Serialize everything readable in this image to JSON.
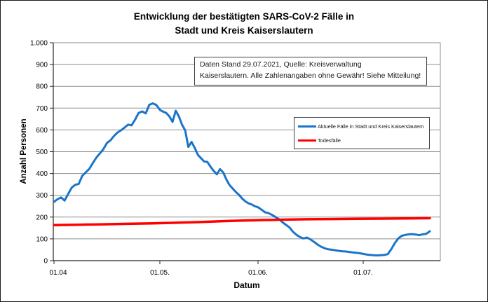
{
  "title": {
    "line1": "Entwicklung der bestätigten SARS-CoV-2 Fälle in",
    "line2": "Stadt und Kreis Kaiserslautern"
  },
  "annotation": {
    "line1": "Daten Stand 29.07.2021, Quelle: Kreisverwaltung",
    "line2": "Kaiserslautern. Alle Zahlenangaben ohne Gewähr! Siehe Mitteilung!"
  },
  "chart_data": {
    "type": "line",
    "title": "Entwicklung der bestätigten SARS-CoV-2 Fälle in Stadt und Kreis Kaiserslautern",
    "xlabel": "Datum",
    "ylabel": "Anzahl Personen",
    "ylim": [
      0,
      1000
    ],
    "grid": true,
    "legend_position": "inside-right",
    "y_axis": {
      "max": 1000,
      "ticks": [
        {
          "v": 0,
          "label": "0"
        },
        {
          "v": 100,
          "label": "100"
        },
        {
          "v": 200,
          "label": "200"
        },
        {
          "v": 300,
          "label": "300"
        },
        {
          "v": 400,
          "label": "400"
        },
        {
          "v": 500,
          "label": "500"
        },
        {
          "v": 600,
          "label": "600"
        },
        {
          "v": 700,
          "label": "700"
        },
        {
          "v": 800,
          "label": "800"
        },
        {
          "v": 900,
          "label": "900"
        },
        {
          "v": 1000,
          "label": "1.000"
        }
      ]
    },
    "x_axis": {
      "ticks": [
        {
          "date": "01.04",
          "label": "01.04"
        },
        {
          "date": "01.05",
          "label": "01.05."
        },
        {
          "date": "01.06",
          "label": "01.06."
        },
        {
          "date": "01.07",
          "label": "01.07."
        }
      ]
    },
    "series": [
      {
        "id": "aktuelle-faelle",
        "name": "Aktuelle Fälle in Stadt und Kreis Kaiserslautern",
        "color": "#1a75c9",
        "width": 3,
        "points": [
          [
            "01.04",
            270
          ],
          [
            "02.04",
            282
          ],
          [
            "03.04",
            290
          ],
          [
            "04.04",
            276
          ],
          [
            "05.04",
            305
          ],
          [
            "06.04",
            335
          ],
          [
            "07.04",
            348
          ],
          [
            "08.04",
            352
          ],
          [
            "09.04",
            389
          ],
          [
            "10.04",
            405
          ],
          [
            "11.04",
            421
          ],
          [
            "12.04",
            448
          ],
          [
            "13.04",
            473
          ],
          [
            "14.04",
            492
          ],
          [
            "15.04",
            512
          ],
          [
            "16.04",
            540
          ],
          [
            "17.04",
            552
          ],
          [
            "18.04",
            572
          ],
          [
            "19.04",
            588
          ],
          [
            "20.04",
            598
          ],
          [
            "21.04",
            611
          ],
          [
            "22.04",
            624
          ],
          [
            "23.04",
            621
          ],
          [
            "24.04",
            648
          ],
          [
            "25.04",
            678
          ],
          [
            "26.04",
            685
          ],
          [
            "27.04",
            676
          ],
          [
            "28.04",
            715
          ],
          [
            "29.04",
            722
          ],
          [
            "30.04",
            714
          ],
          [
            "01.05",
            692
          ],
          [
            "02.05",
            684
          ],
          [
            "03.05",
            678
          ],
          [
            "04.05",
            662
          ],
          [
            "05.05",
            637
          ],
          [
            "06.05",
            688
          ],
          [
            "07.05",
            662
          ],
          [
            "08.05",
            624
          ],
          [
            "09.05",
            598
          ],
          [
            "10.05",
            522
          ],
          [
            "11.05",
            545
          ],
          [
            "12.05",
            518
          ],
          [
            "13.05",
            486
          ],
          [
            "14.05",
            470
          ],
          [
            "15.05",
            455
          ],
          [
            "16.05",
            453
          ],
          [
            "17.05",
            431
          ],
          [
            "18.05",
            412
          ],
          [
            "19.05",
            396
          ],
          [
            "20.05",
            420
          ],
          [
            "21.05",
            405
          ],
          [
            "22.05",
            373
          ],
          [
            "23.05",
            347
          ],
          [
            "24.05",
            331
          ],
          [
            "25.05",
            315
          ],
          [
            "26.05",
            302
          ],
          [
            "27.05",
            285
          ],
          [
            "28.05",
            272
          ],
          [
            "29.05",
            263
          ],
          [
            "30.05",
            258
          ],
          [
            "31.05",
            250
          ],
          [
            "01.06",
            245
          ],
          [
            "02.06",
            234
          ],
          [
            "03.06",
            222
          ],
          [
            "04.06",
            218
          ],
          [
            "05.06",
            210
          ],
          [
            "06.06",
            200
          ],
          [
            "07.06",
            190
          ],
          [
            "08.06",
            176
          ],
          [
            "09.06",
            164
          ],
          [
            "10.06",
            152
          ],
          [
            "11.06",
            132
          ],
          [
            "12.06",
            118
          ],
          [
            "13.06",
            108
          ],
          [
            "14.06",
            102
          ],
          [
            "15.06",
            106
          ],
          [
            "16.06",
            97
          ],
          [
            "17.06",
            86
          ],
          [
            "18.06",
            74
          ],
          [
            "19.06",
            64
          ],
          [
            "20.06",
            57
          ],
          [
            "21.06",
            52
          ],
          [
            "22.06",
            50
          ],
          [
            "23.06",
            48
          ],
          [
            "24.06",
            45
          ],
          [
            "25.06",
            43
          ],
          [
            "26.06",
            42
          ],
          [
            "27.06",
            40
          ],
          [
            "28.06",
            38
          ],
          [
            "29.06",
            36
          ],
          [
            "30.06",
            34
          ],
          [
            "01.07",
            31
          ],
          [
            "02.07",
            28
          ],
          [
            "03.07",
            26
          ],
          [
            "04.07",
            25
          ],
          [
            "05.07",
            24
          ],
          [
            "06.07",
            25
          ],
          [
            "07.07",
            26
          ],
          [
            "08.07",
            30
          ],
          [
            "09.07",
            52
          ],
          [
            "10.07",
            80
          ],
          [
            "11.07",
            102
          ],
          [
            "12.07",
            114
          ],
          [
            "13.07",
            118
          ],
          [
            "14.07",
            121
          ],
          [
            "15.07",
            122
          ],
          [
            "16.07",
            120
          ],
          [
            "17.07",
            117
          ],
          [
            "18.07",
            121
          ],
          [
            "19.07",
            123
          ],
          [
            "20.07",
            135
          ]
        ]
      },
      {
        "id": "todesfaelle",
        "name": "Todesfälle",
        "color": "#ff0000",
        "width": 3.5,
        "points": [
          [
            "01.04",
            163
          ],
          [
            "08.04",
            165
          ],
          [
            "15.04",
            167
          ],
          [
            "22.04",
            169
          ],
          [
            "29.04",
            171
          ],
          [
            "06.05",
            174
          ],
          [
            "13.05",
            177
          ],
          [
            "20.05",
            181
          ],
          [
            "27.05",
            184
          ],
          [
            "01.06",
            186
          ],
          [
            "08.06",
            188
          ],
          [
            "15.06",
            190
          ],
          [
            "22.06",
            191
          ],
          [
            "29.06",
            192
          ],
          [
            "06.07",
            193
          ],
          [
            "13.07",
            194
          ],
          [
            "20.07",
            195
          ]
        ]
      }
    ]
  }
}
